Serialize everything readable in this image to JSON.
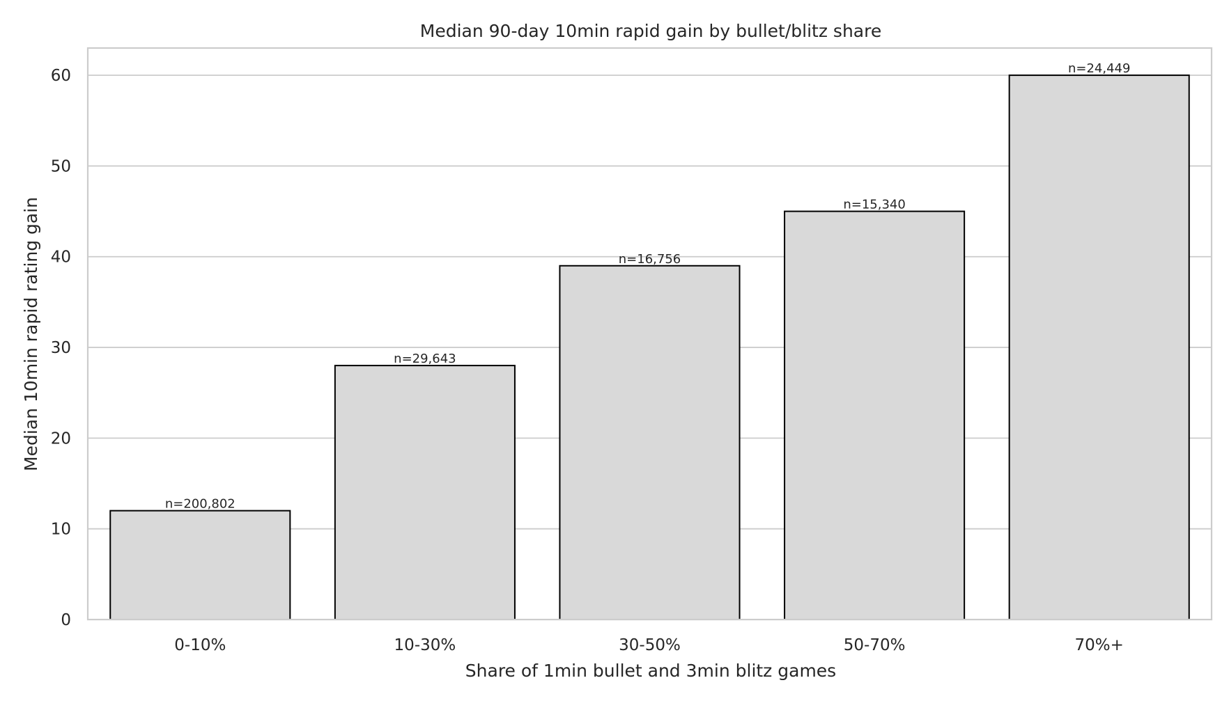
{
  "chart_data": {
    "type": "bar",
    "title": "Median 90-day 10min rapid gain by bullet/blitz share",
    "xlabel": "Share of 1min bullet and 3min blitz games",
    "ylabel": "Median 10min rapid rating gain",
    "categories": [
      "0-10%",
      "10-30%",
      "30-50%",
      "50-70%",
      "70%+"
    ],
    "values": [
      12,
      28,
      39,
      45,
      60
    ],
    "bar_labels": [
      "n=200,802",
      "n=29,643",
      "n=16,756",
      "n=15,340",
      "n=24,449"
    ],
    "yticks": [
      0,
      10,
      20,
      30,
      40,
      50,
      60
    ],
    "ylim": [
      0,
      63
    ],
    "grid": "horizontal",
    "bar_color": "#d9d9d9",
    "bar_edge_color": "#000000"
  }
}
